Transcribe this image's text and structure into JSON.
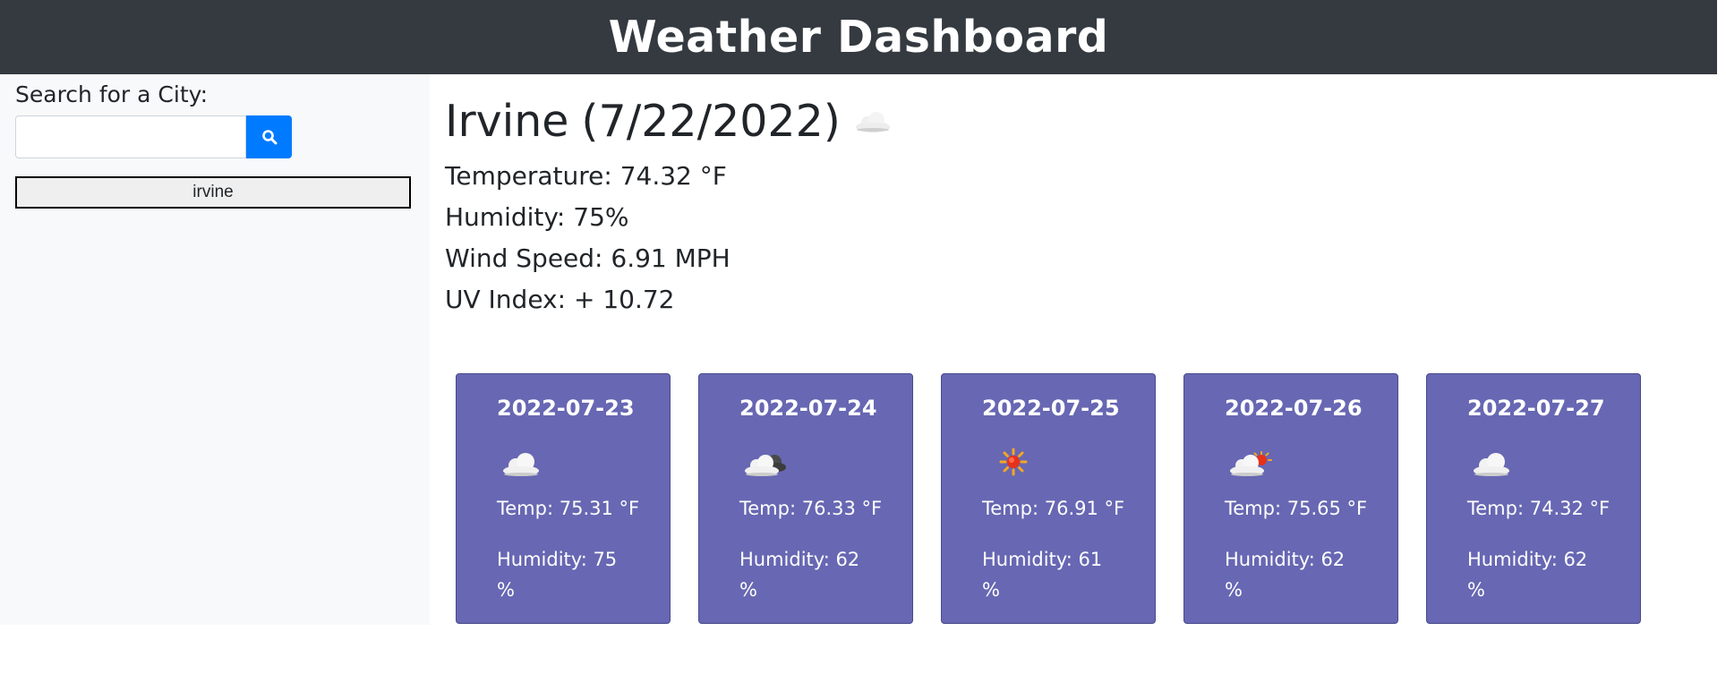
{
  "header": {
    "title": "Weather Dashboard"
  },
  "sidebar": {
    "search_label": "Search for a City:",
    "search_value": "",
    "search_placeholder": "",
    "search_icon": "search-icon",
    "history": [
      {
        "label": "irvine"
      }
    ]
  },
  "current": {
    "city": "Irvine",
    "date": "(7/22/2022)",
    "icon": "cloud-icon",
    "temperature": "Temperature: 74.32 °F",
    "humidity": "Humidity: 75%",
    "wind": "Wind Speed: 6.91 MPH",
    "uv": "UV Index: + 10.72"
  },
  "forecast": [
    {
      "date": "2022-07-23",
      "icon": "cloud-icon",
      "temp": "Temp: 75.31 °F",
      "humidity": "Humidity: 75 %"
    },
    {
      "date": "2022-07-24",
      "icon": "cloudy-dark-cloud-icon",
      "temp": "Temp: 76.33 °F",
      "humidity": "Humidity: 62 %"
    },
    {
      "date": "2022-07-25",
      "icon": "sun-icon",
      "temp": "Temp: 76.91 °F",
      "humidity": "Humidity: 61 %"
    },
    {
      "date": "2022-07-26",
      "icon": "partly-cloudy-icon",
      "temp": "Temp: 75.65 °F",
      "humidity": "Humidity: 62 %"
    },
    {
      "date": "2022-07-27",
      "icon": "cloud-icon",
      "temp": "Temp: 74.32 °F",
      "humidity": "Humidity: 62 %"
    }
  ],
  "colors": {
    "header_bg": "#343a40",
    "sidebar_bg": "#f8f9fa",
    "accent": "#007bff",
    "card_bg": "#6767b3"
  }
}
